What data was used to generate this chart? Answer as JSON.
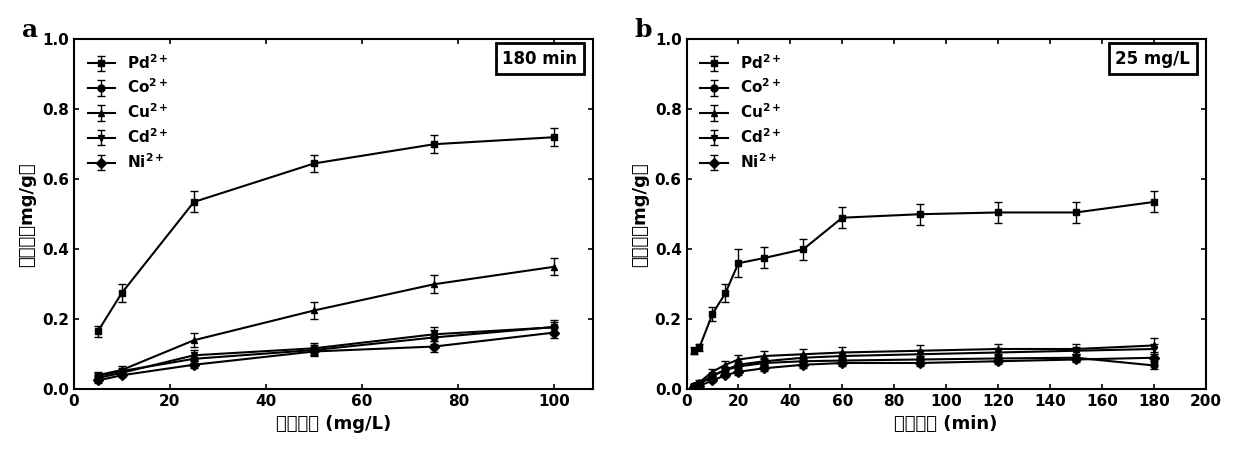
{
  "panel_a": {
    "title": "a",
    "annotation": "180 min",
    "xlabel": "原始浓度 (mg/L)",
    "ylabel": "吸附量（mg/g）",
    "xlim": [
      0,
      108
    ],
    "ylim": [
      0,
      1.0
    ],
    "xticks": [
      0,
      20,
      40,
      60,
      80,
      100
    ],
    "yticks": [
      0.0,
      0.2,
      0.4,
      0.6,
      0.8,
      1.0
    ],
    "series": {
      "Pd": {
        "x": [
          5,
          10,
          25,
          50,
          75,
          100
        ],
        "y": [
          0.165,
          0.275,
          0.535,
          0.645,
          0.7,
          0.72
        ],
        "yerr": [
          0.015,
          0.025,
          0.03,
          0.025,
          0.025,
          0.025
        ],
        "marker": "s",
        "label": "Pd$^{2+}$"
      },
      "Co": {
        "x": [
          5,
          10,
          25,
          50,
          75,
          100
        ],
        "y": [
          0.038,
          0.052,
          0.087,
          0.112,
          0.148,
          0.178
        ],
        "yerr": [
          0.008,
          0.008,
          0.012,
          0.015,
          0.02,
          0.02
        ],
        "marker": "o",
        "label": "Co$^{2+}$"
      },
      "Cu": {
        "x": [
          5,
          10,
          25,
          50,
          75,
          100
        ],
        "y": [
          0.04,
          0.055,
          0.14,
          0.225,
          0.3,
          0.35
        ],
        "yerr": [
          0.01,
          0.01,
          0.02,
          0.025,
          0.025,
          0.025
        ],
        "marker": "^",
        "label": "Cu$^{2+}$"
      },
      "Cd": {
        "x": [
          5,
          10,
          25,
          50,
          75,
          100
        ],
        "y": [
          0.032,
          0.047,
          0.097,
          0.117,
          0.157,
          0.177
        ],
        "yerr": [
          0.008,
          0.008,
          0.015,
          0.015,
          0.02,
          0.015
        ],
        "marker": "v",
        "label": "Cd$^{2+}$"
      },
      "Ni": {
        "x": [
          5,
          10,
          25,
          50,
          75,
          100
        ],
        "y": [
          0.025,
          0.04,
          0.07,
          0.108,
          0.122,
          0.162
        ],
        "yerr": [
          0.006,
          0.006,
          0.01,
          0.012,
          0.015,
          0.015
        ],
        "marker": "D",
        "label": "Ni$^{2+}$"
      }
    },
    "series_order": [
      "Pd",
      "Co",
      "Cu",
      "Cd",
      "Ni"
    ]
  },
  "panel_b": {
    "title": "b",
    "annotation": "25 mg/L",
    "xlabel": "吸附时间 (min)",
    "ylabel": "吸附量（mg/g）",
    "xlim": [
      0,
      200
    ],
    "ylim": [
      0,
      1.0
    ],
    "xticks": [
      0,
      20,
      40,
      60,
      80,
      100,
      120,
      140,
      160,
      180,
      200
    ],
    "yticks": [
      0.0,
      0.2,
      0.4,
      0.6,
      0.8,
      1.0
    ],
    "series": {
      "Pd": {
        "x": [
          3,
          5,
          10,
          15,
          20,
          30,
          45,
          60,
          90,
          120,
          150,
          180
        ],
        "y": [
          0.11,
          0.12,
          0.215,
          0.275,
          0.36,
          0.375,
          0.4,
          0.49,
          0.5,
          0.505,
          0.505,
          0.535
        ],
        "yerr": [
          0.01,
          0.01,
          0.02,
          0.025,
          0.04,
          0.03,
          0.03,
          0.03,
          0.03,
          0.03,
          0.03,
          0.03
        ],
        "marker": "s",
        "label": "Pd$^{2+}$"
      },
      "Co": {
        "x": [
          3,
          5,
          10,
          15,
          20,
          30,
          45,
          60,
          90,
          120,
          150,
          180
        ],
        "y": [
          0.01,
          0.015,
          0.038,
          0.055,
          0.065,
          0.075,
          0.08,
          0.082,
          0.085,
          0.088,
          0.09,
          0.068
        ],
        "yerr": [
          0.005,
          0.005,
          0.006,
          0.008,
          0.01,
          0.01,
          0.01,
          0.01,
          0.01,
          0.01,
          0.01,
          0.01
        ],
        "marker": "o",
        "label": "Co$^{2+}$"
      },
      "Cu": {
        "x": [
          3,
          5,
          10,
          15,
          20,
          30,
          45,
          60,
          90,
          120,
          150,
          180
        ],
        "y": [
          0.01,
          0.02,
          0.05,
          0.07,
          0.085,
          0.095,
          0.1,
          0.105,
          0.11,
          0.115,
          0.115,
          0.125
        ],
        "yerr": [
          0.005,
          0.005,
          0.008,
          0.01,
          0.012,
          0.015,
          0.015,
          0.015,
          0.015,
          0.015,
          0.015,
          0.02
        ],
        "marker": "^",
        "label": "Cu$^{2+}$"
      },
      "Cd": {
        "x": [
          3,
          5,
          10,
          15,
          20,
          30,
          45,
          60,
          90,
          120,
          150,
          180
        ],
        "y": [
          0.01,
          0.015,
          0.04,
          0.055,
          0.07,
          0.08,
          0.09,
          0.095,
          0.1,
          0.105,
          0.11,
          0.115
        ],
        "yerr": [
          0.005,
          0.005,
          0.006,
          0.008,
          0.01,
          0.01,
          0.01,
          0.01,
          0.012,
          0.012,
          0.012,
          0.015
        ],
        "marker": "v",
        "label": "Cd$^{2+}$"
      },
      "Ni": {
        "x": [
          3,
          5,
          10,
          15,
          20,
          30,
          45,
          60,
          90,
          120,
          150,
          180
        ],
        "y": [
          0.005,
          0.01,
          0.025,
          0.04,
          0.05,
          0.06,
          0.07,
          0.075,
          0.075,
          0.08,
          0.085,
          0.09
        ],
        "yerr": [
          0.003,
          0.003,
          0.005,
          0.006,
          0.008,
          0.008,
          0.008,
          0.008,
          0.008,
          0.008,
          0.008,
          0.01
        ],
        "marker": "D",
        "label": "Ni$^{2+}$"
      }
    },
    "series_order": [
      "Pd",
      "Co",
      "Cu",
      "Cd",
      "Ni"
    ]
  },
  "line_color": "#000000",
  "marker_size": 5,
  "linewidth": 1.5,
  "capsize": 3,
  "elinewidth": 1.0,
  "legend_fontsize": 11,
  "axis_fontsize": 13,
  "tick_fontsize": 11,
  "panel_label_fontsize": 18
}
